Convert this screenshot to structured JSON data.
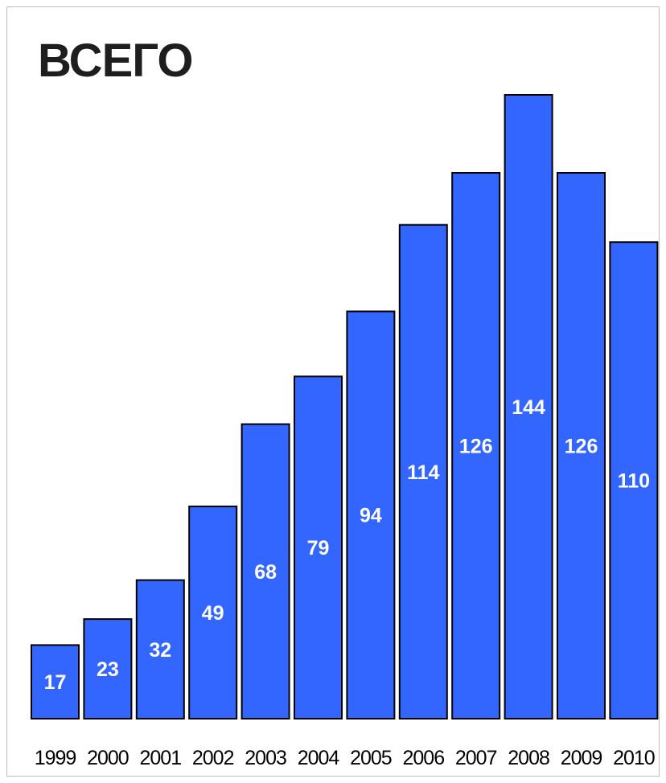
{
  "chart_data": {
    "type": "bar",
    "title": "ВСЕГО",
    "categories": [
      "1999",
      "2000",
      "2001",
      "2002",
      "2003",
      "2004",
      "2005",
      "2006",
      "2007",
      "2008",
      "2009",
      "2010"
    ],
    "values": [
      17,
      23,
      32,
      49,
      68,
      79,
      94,
      114,
      126,
      144,
      126,
      110
    ],
    "xlabel": "",
    "ylabel": "",
    "ylim": [
      0,
      144
    ],
    "grid": false,
    "legend": "none",
    "data_labels": true,
    "colors": {
      "bar_fill": "#3366ff",
      "bar_stroke": "#000000",
      "label_text": "#ffffff",
      "title_text": "#1e1e1e"
    }
  }
}
